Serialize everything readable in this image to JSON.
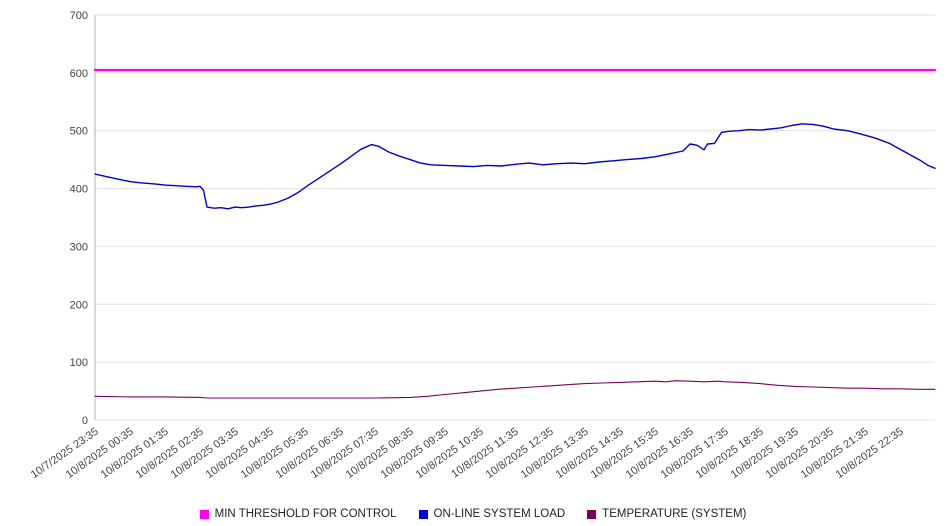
{
  "chart_data": {
    "type": "line",
    "grid": true,
    "legend_position": "bottom",
    "ylim": [
      0,
      700
    ],
    "yticks": [
      0,
      100,
      200,
      300,
      400,
      500,
      600,
      700
    ],
    "xlim": [
      0,
      24
    ],
    "x_tick_labels": [
      "10/7/2025 23:35",
      "10/8/2025 00:35",
      "10/8/2025 01:35",
      "10/8/2025 02:35",
      "10/8/2025 03:35",
      "10/8/2025 04:35",
      "10/8/2025 05:35",
      "10/8/2025 06:35",
      "10/8/2025 07:35",
      "10/8/2025 08:35",
      "10/8/2025 09:35",
      "10/8/2025 10:35",
      "10/8/2025 11:35",
      "10/8/2025 12:35",
      "10/8/2025 13:35",
      "10/8/2025 14:35",
      "10/8/2025 15:35",
      "10/8/2025 16:35",
      "10/8/2025 17:35",
      "10/8/2025 18:35",
      "10/8/2025 19:35",
      "10/8/2025 20:35",
      "10/8/2025 21:35",
      "10/8/2025 22:35"
    ],
    "series": [
      {
        "name": "MIN THRESHOLD FOR CONTROL",
        "color": "#ff00f0",
        "width": 2.2,
        "points": [
          [
            0,
            605
          ],
          [
            24,
            605
          ]
        ]
      },
      {
        "name": "ON-LINE SYSTEM LOAD",
        "color": "#0000cc",
        "width": 1.4,
        "points": [
          [
            0,
            425
          ],
          [
            0.3,
            421
          ],
          [
            0.6,
            417
          ],
          [
            1,
            412
          ],
          [
            1.3,
            410
          ],
          [
            1.7,
            408
          ],
          [
            2,
            406
          ],
          [
            2.3,
            405
          ],
          [
            2.6,
            404
          ],
          [
            2.9,
            403
          ],
          [
            3.0,
            404
          ],
          [
            3.1,
            397
          ],
          [
            3.2,
            368
          ],
          [
            3.4,
            366
          ],
          [
            3.6,
            367
          ],
          [
            3.8,
            365
          ],
          [
            4.0,
            368
          ],
          [
            4.2,
            367
          ],
          [
            4.4,
            368
          ],
          [
            4.6,
            370
          ],
          [
            4.8,
            371
          ],
          [
            5.0,
            373
          ],
          [
            5.2,
            376
          ],
          [
            5.5,
            383
          ],
          [
            5.8,
            393
          ],
          [
            6.1,
            406
          ],
          [
            6.4,
            418
          ],
          [
            6.7,
            430
          ],
          [
            7.0,
            442
          ],
          [
            7.3,
            455
          ],
          [
            7.6,
            468
          ],
          [
            7.9,
            476
          ],
          [
            8.1,
            473
          ],
          [
            8.4,
            463
          ],
          [
            8.7,
            456
          ],
          [
            9.0,
            450
          ],
          [
            9.3,
            444
          ],
          [
            9.6,
            441
          ],
          [
            10,
            440
          ],
          [
            10.4,
            439
          ],
          [
            10.8,
            438
          ],
          [
            11.2,
            440
          ],
          [
            11.6,
            439
          ],
          [
            12.0,
            442
          ],
          [
            12.4,
            444
          ],
          [
            12.8,
            441
          ],
          [
            13.2,
            443
          ],
          [
            13.6,
            444
          ],
          [
            14.0,
            443
          ],
          [
            14.4,
            446
          ],
          [
            14.8,
            448
          ],
          [
            15.2,
            450
          ],
          [
            15.6,
            452
          ],
          [
            16.0,
            455
          ],
          [
            16.4,
            460
          ],
          [
            16.8,
            465
          ],
          [
            17.0,
            477
          ],
          [
            17.2,
            475
          ],
          [
            17.4,
            467
          ],
          [
            17.5,
            477
          ],
          [
            17.7,
            478
          ],
          [
            17.9,
            497
          ],
          [
            18.1,
            499
          ],
          [
            18.4,
            500
          ],
          [
            18.7,
            502
          ],
          [
            19.0,
            501
          ],
          [
            19.3,
            503
          ],
          [
            19.6,
            505
          ],
          [
            19.9,
            509
          ],
          [
            20.2,
            512
          ],
          [
            20.5,
            511
          ],
          [
            20.8,
            508
          ],
          [
            21.1,
            503
          ],
          [
            21.5,
            500
          ],
          [
            21.9,
            494
          ],
          [
            22.3,
            487
          ],
          [
            22.7,
            478
          ],
          [
            23.0,
            468
          ],
          [
            23.3,
            458
          ],
          [
            23.6,
            448
          ],
          [
            23.8,
            440
          ],
          [
            24,
            435
          ]
        ]
      },
      {
        "name": "TEMPERATURE (SYSTEM)",
        "color": "#7a005c",
        "width": 1.1,
        "points": [
          [
            0,
            41
          ],
          [
            1,
            40
          ],
          [
            2,
            40
          ],
          [
            3,
            39
          ],
          [
            3.2,
            38
          ],
          [
            4,
            38
          ],
          [
            5,
            38
          ],
          [
            6,
            38
          ],
          [
            7,
            38
          ],
          [
            8,
            38
          ],
          [
            9,
            39
          ],
          [
            9.5,
            41
          ],
          [
            10,
            44
          ],
          [
            10.5,
            47
          ],
          [
            11,
            50
          ],
          [
            11.5,
            53
          ],
          [
            12,
            55
          ],
          [
            12.5,
            57
          ],
          [
            13,
            59
          ],
          [
            13.5,
            61
          ],
          [
            14,
            63
          ],
          [
            14.5,
            64
          ],
          [
            15,
            65
          ],
          [
            15.5,
            66
          ],
          [
            16,
            67
          ],
          [
            16.3,
            66
          ],
          [
            16.6,
            68
          ],
          [
            17,
            67
          ],
          [
            17.4,
            66
          ],
          [
            17.8,
            67
          ],
          [
            18,
            66
          ],
          [
            18.5,
            65
          ],
          [
            19,
            63
          ],
          [
            19.5,
            60
          ],
          [
            20,
            58
          ],
          [
            20.5,
            57
          ],
          [
            21,
            56
          ],
          [
            21.5,
            55
          ],
          [
            22,
            55
          ],
          [
            22.5,
            54
          ],
          [
            23,
            54
          ],
          [
            23.5,
            53
          ],
          [
            24,
            53
          ]
        ]
      }
    ]
  }
}
